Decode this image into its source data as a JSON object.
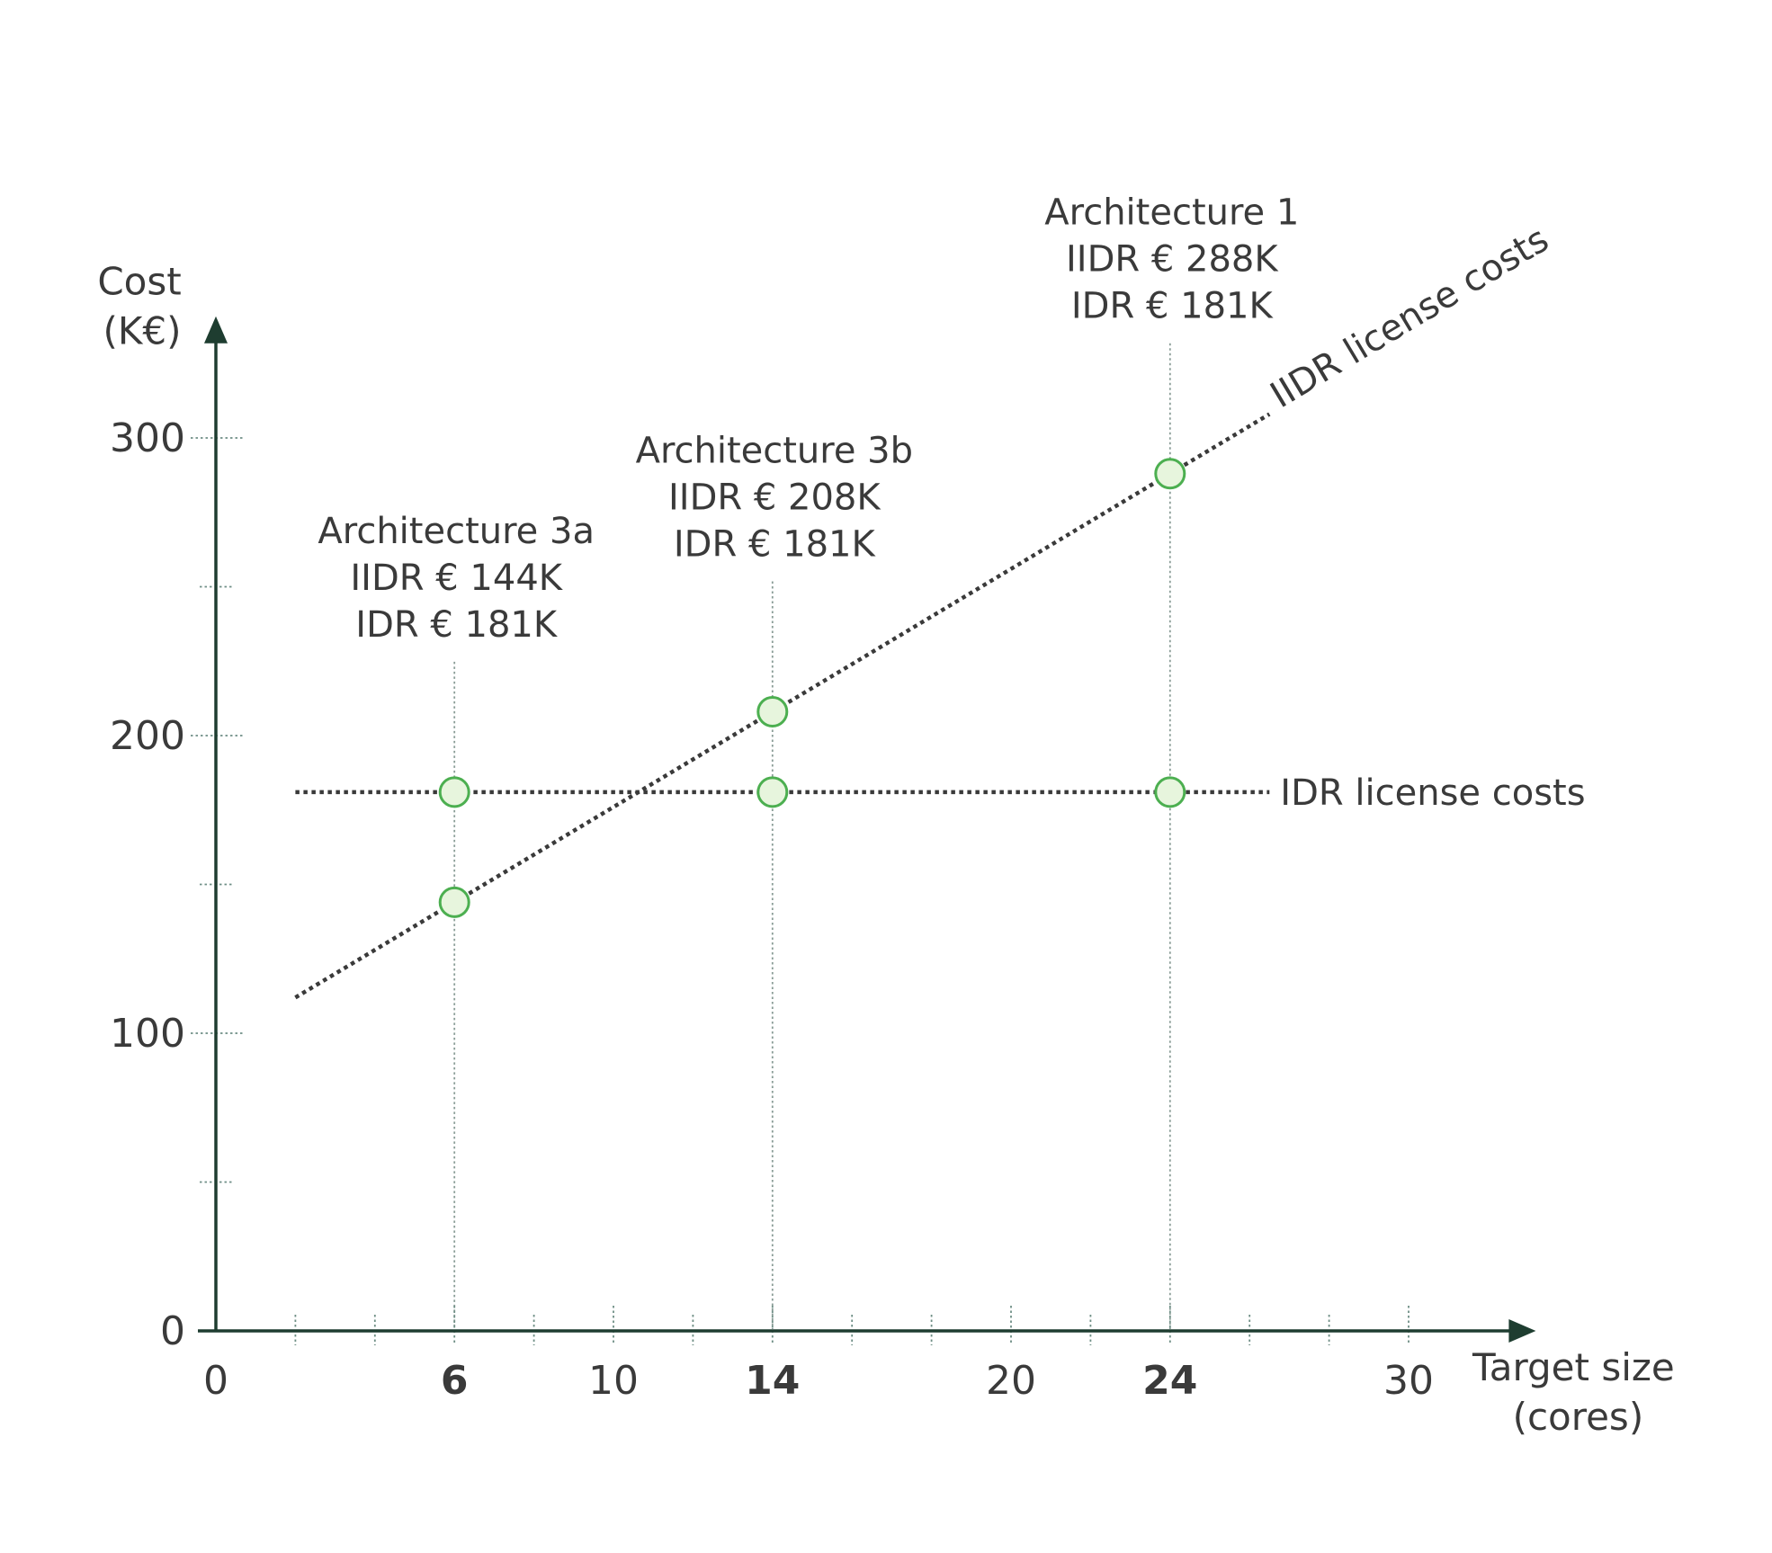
{
  "chart_data": {
    "type": "line",
    "title": "",
    "xlabel": [
      "Target size",
      "(cores)"
    ],
    "ylabel": [
      "Cost",
      "(K€)"
    ],
    "xlim": [
      0,
      32
    ],
    "ylim": [
      0,
      330
    ],
    "x_ticks": [
      {
        "value": 0,
        "label": "0",
        "bold": false
      },
      {
        "value": 6,
        "label": "6",
        "bold": true
      },
      {
        "value": 10,
        "label": "10",
        "bold": false
      },
      {
        "value": 14,
        "label": "14",
        "bold": true
      },
      {
        "value": 20,
        "label": "20",
        "bold": false
      },
      {
        "value": 24,
        "label": "24",
        "bold": true
      },
      {
        "value": 30,
        "label": "30",
        "bold": false
      }
    ],
    "x_minor_ticks": [
      2,
      4,
      6,
      8,
      10,
      12,
      14,
      16,
      18,
      20,
      22,
      24,
      26,
      28,
      30
    ],
    "y_ticks": [
      {
        "value": 0,
        "label": "0"
      },
      {
        "value": 100,
        "label": "100"
      },
      {
        "value": 200,
        "label": "200"
      },
      {
        "value": 300,
        "label": "300"
      }
    ],
    "y_minor_ticks": [
      50,
      150,
      250
    ],
    "series": [
      {
        "name": "IIDR license costs",
        "line": {
          "x": [
            2,
            26.5
          ],
          "y": [
            112,
            308
          ]
        },
        "points": [
          {
            "x": 6,
            "y": 144
          },
          {
            "x": 14,
            "y": 208
          },
          {
            "x": 24,
            "y": 288
          }
        ]
      },
      {
        "name": "IDR license costs",
        "line": {
          "x": [
            2,
            26.5
          ],
          "y": [
            181,
            181
          ]
        },
        "points": [
          {
            "x": 6,
            "y": 181
          },
          {
            "x": 14,
            "y": 181
          },
          {
            "x": 24,
            "y": 181
          }
        ]
      }
    ],
    "annotations": [
      {
        "x": 6,
        "lines": [
          "Architecture 3a",
          "IIDR € 144K",
          "IDR € 181K"
        ]
      },
      {
        "x": 14,
        "lines": [
          "Architecture 3b",
          "IIDR € 208K",
          "IDR € 181K"
        ]
      },
      {
        "x": 24,
        "lines": [
          "Architecture 1",
          "IIDR € 288K",
          "IDR € 181K"
        ]
      }
    ],
    "grid": false,
    "legend": "inline labels at line ends"
  }
}
